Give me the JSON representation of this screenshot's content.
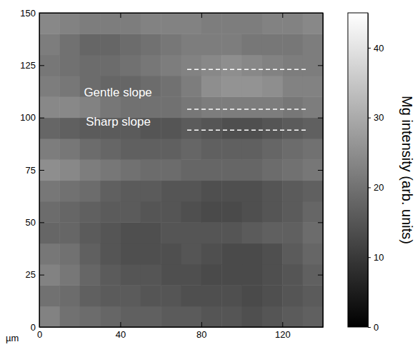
{
  "chart_data": {
    "type": "heatmap",
    "x_label": "µm",
    "x_edges": [
      0,
      10,
      20,
      30,
      40,
      50,
      60,
      70,
      80,
      90,
      100,
      110,
      120,
      130,
      140
    ],
    "y_edges": [
      0,
      10,
      20,
      30,
      40,
      50,
      60,
      70,
      80,
      90,
      100,
      110,
      120,
      130,
      140,
      150
    ],
    "z": [
      [
        23,
        20,
        19,
        18,
        17,
        17,
        16,
        16,
        15,
        15,
        14,
        15,
        16,
        17
      ],
      [
        20,
        19,
        17,
        16,
        16,
        15,
        15,
        14,
        14,
        14,
        13,
        14,
        15,
        16
      ],
      [
        23,
        21,
        18,
        16,
        15,
        15,
        14,
        14,
        13,
        13,
        13,
        14,
        15,
        17
      ],
      [
        21,
        20,
        17,
        15,
        14,
        14,
        14,
        15,
        14,
        13,
        13,
        14,
        16,
        18
      ],
      [
        18,
        18,
        16,
        15,
        14,
        14,
        15,
        15,
        15,
        15,
        16,
        17,
        17,
        19
      ],
      [
        19,
        18,
        17,
        16,
        16,
        15,
        15,
        14,
        13,
        13,
        14,
        15,
        16,
        18
      ],
      [
        21,
        20,
        19,
        17,
        16,
        16,
        15,
        15,
        14,
        14,
        14,
        15,
        16,
        17
      ],
      [
        25,
        24,
        22,
        21,
        20,
        19,
        19,
        18,
        18,
        18,
        18,
        19,
        20,
        21
      ],
      [
        22,
        21,
        19,
        18,
        17,
        17,
        17,
        18,
        17,
        17,
        17,
        18,
        19,
        20
      ],
      [
        18,
        17,
        16,
        16,
        16,
        15,
        15,
        16,
        15,
        14,
        14,
        15,
        16,
        17
      ],
      [
        24,
        24,
        23,
        21,
        20,
        20,
        20,
        21,
        22,
        22,
        22,
        22,
        21,
        22
      ],
      [
        22,
        21,
        19,
        18,
        18,
        19,
        20,
        22,
        25,
        26,
        26,
        25,
        23,
        23
      ],
      [
        21,
        20,
        19,
        19,
        20,
        21,
        22,
        23,
        24,
        25,
        24,
        23,
        22,
        22
      ],
      [
        22,
        20,
        18,
        18,
        19,
        20,
        21,
        22,
        22,
        22,
        21,
        21,
        21,
        22
      ],
      [
        24,
        23,
        22,
        22,
        22,
        23,
        23,
        23,
        22,
        22,
        22,
        23,
        23,
        24
      ]
    ],
    "xlim": [
      0,
      140
    ],
    "ylim": [
      0,
      150
    ],
    "xticks": [
      0,
      40,
      80,
      120
    ],
    "yticks": [
      0,
      25,
      50,
      75,
      100,
      125,
      150
    ],
    "color": "gray",
    "colorbar": {
      "label": "Mg intensity (arb. units)",
      "lim": [
        0,
        45
      ],
      "ticks": [
        0,
        10,
        20,
        30,
        40
      ]
    },
    "annotations": [
      {
        "text": "Gentle slope",
        "x": 22,
        "y": 110
      },
      {
        "text": "Sharp slope",
        "x": 23,
        "y": 96
      }
    ],
    "lines": [
      {
        "y": 123,
        "x0": 73,
        "x1": 132,
        "line_style": "dashed"
      },
      {
        "y": 104,
        "x0": 73,
        "x1": 132,
        "line_style": "dashed"
      },
      {
        "y": 94,
        "x0": 73,
        "x1": 132,
        "line_style": "dashed"
      }
    ]
  }
}
